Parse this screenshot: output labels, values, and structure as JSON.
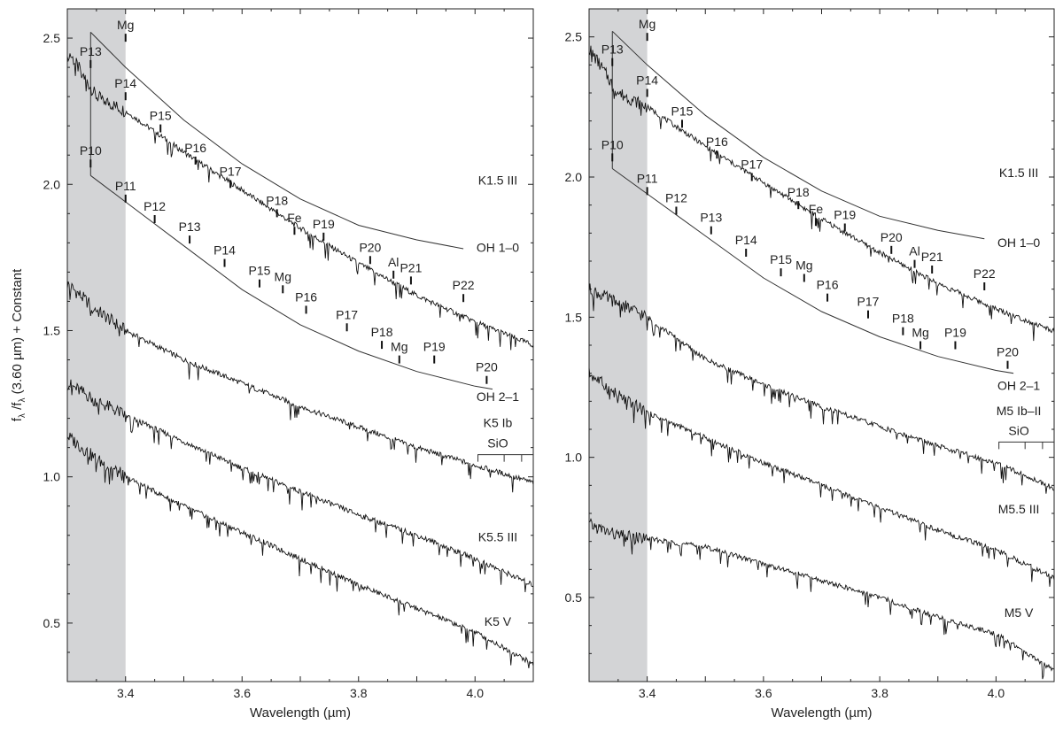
{
  "chart_data": [
    {
      "type": "line",
      "panel": "left",
      "xlabel": "Wavelength (µm)",
      "ylabel_parts": [
        "f",
        "λ",
        " /f",
        "λ",
        " (3.60 µm) + Constant"
      ],
      "xlim": [
        3.3,
        4.1
      ],
      "ylim": [
        0.3,
        2.6
      ],
      "xticks": [
        3.4,
        3.6,
        3.8,
        4.0
      ],
      "xtick_labels": [
        "3.4",
        "3.6",
        "3.8",
        "4.0"
      ],
      "yticks": [
        0.5,
        1.0,
        1.5,
        2.0,
        2.5
      ],
      "ytick_labels": [
        "0.5",
        "1.0",
        "1.5",
        "2.0",
        "2.5"
      ],
      "shaded_region": [
        3.3,
        3.4
      ],
      "series": [
        {
          "name": "K1.5 III",
          "x": [
            3.3,
            3.35,
            3.4,
            3.5,
            3.6,
            3.7,
            3.8,
            3.9,
            4.0,
            4.1
          ],
          "y": [
            2.46,
            2.3,
            2.25,
            2.11,
            1.98,
            1.85,
            1.73,
            1.62,
            1.53,
            1.45
          ]
        },
        {
          "name": "K5 Ib",
          "x": [
            3.3,
            3.35,
            3.4,
            3.5,
            3.6,
            3.7,
            3.8,
            3.9,
            4.0,
            4.1
          ],
          "y": [
            1.66,
            1.57,
            1.5,
            1.4,
            1.32,
            1.24,
            1.17,
            1.1,
            1.04,
            0.98
          ]
        },
        {
          "name": "K5.5 III",
          "x": [
            3.3,
            3.35,
            3.4,
            3.5,
            3.6,
            3.7,
            3.8,
            3.9,
            4.0,
            4.1
          ],
          "y": [
            1.32,
            1.26,
            1.21,
            1.12,
            1.03,
            0.95,
            0.87,
            0.8,
            0.72,
            0.63
          ]
        },
        {
          "name": "K5  V",
          "x": [
            3.3,
            3.35,
            3.4,
            3.5,
            3.6,
            3.7,
            3.8,
            3.9,
            4.0,
            4.1
          ],
          "y": [
            1.14,
            1.06,
            1.0,
            0.9,
            0.81,
            0.72,
            0.63,
            0.55,
            0.47,
            0.36
          ]
        }
      ],
      "band_labels": [
        {
          "text": "K1.5 III",
          "x": 4.03,
          "y": 2.0
        },
        {
          "text": "OH 1–0",
          "x": 4.03,
          "y": 1.77
        },
        {
          "text": "OH 2–1",
          "x": 4.03,
          "y": 1.26
        },
        {
          "text": "K5 Ib",
          "x": 4.03,
          "y": 1.17
        },
        {
          "text": "SiO",
          "x": 4.03,
          "y": 1.1
        },
        {
          "text": "K5.5 III",
          "x": 4.03,
          "y": 0.78
        },
        {
          "text": "K5  V",
          "x": 4.03,
          "y": 0.49
        }
      ],
      "line_ids": [
        {
          "text": "Mg",
          "x": 3.4,
          "y": 2.53
        },
        {
          "text": "P13",
          "x": 3.34,
          "y": 2.44
        },
        {
          "text": "P14",
          "x": 3.4,
          "y": 2.33
        },
        {
          "text": "P15",
          "x": 3.46,
          "y": 2.22
        },
        {
          "text": "P10",
          "x": 3.34,
          "y": 2.1
        },
        {
          "text": "P16",
          "x": 3.52,
          "y": 2.11
        },
        {
          "text": "P17",
          "x": 3.58,
          "y": 2.03
        },
        {
          "text": "P11",
          "x": 3.4,
          "y": 1.98
        },
        {
          "text": "P12",
          "x": 3.45,
          "y": 1.91
        },
        {
          "text": "P18",
          "x": 3.66,
          "y": 1.93
        },
        {
          "text": "Fe",
          "x": 3.69,
          "y": 1.87
        },
        {
          "text": "P13",
          "x": 3.51,
          "y": 1.84
        },
        {
          "text": "P19",
          "x": 3.74,
          "y": 1.85
        },
        {
          "text": "P14",
          "x": 3.57,
          "y": 1.76
        },
        {
          "text": "P20",
          "x": 3.82,
          "y": 1.77
        },
        {
          "text": "Al",
          "x": 3.86,
          "y": 1.72
        },
        {
          "text": "P21",
          "x": 3.89,
          "y": 1.7
        },
        {
          "text": "P15",
          "x": 3.63,
          "y": 1.69
        },
        {
          "text": "Mg",
          "x": 3.67,
          "y": 1.67
        },
        {
          "text": "P22",
          "x": 3.98,
          "y": 1.64
        },
        {
          "text": "P16",
          "x": 3.71,
          "y": 1.6
        },
        {
          "text": "P17",
          "x": 3.78,
          "y": 1.54
        },
        {
          "text": "P18",
          "x": 3.84,
          "y": 1.48
        },
        {
          "text": "Mg",
          "x": 3.87,
          "y": 1.43
        },
        {
          "text": "P19",
          "x": 3.93,
          "y": 1.43
        },
        {
          "text": "P20",
          "x": 4.02,
          "y": 1.36
        }
      ]
    },
    {
      "type": "line",
      "panel": "right",
      "xlabel": "Wavelength (µm)",
      "xlim": [
        3.3,
        4.1
      ],
      "ylim": [
        0.2,
        2.6
      ],
      "xticks": [
        3.4,
        3.6,
        3.8,
        4.0
      ],
      "xtick_labels": [
        "3.4",
        "3.6",
        "3.8",
        "4.0"
      ],
      "yticks": [
        0.5,
        1.0,
        1.5,
        2.0,
        2.5
      ],
      "ytick_labels": [
        "0.5",
        "1.0",
        "1.5",
        "2.0",
        "2.5"
      ],
      "shaded_region": [
        3.3,
        3.4
      ],
      "series": [
        {
          "name": "K1.5 III",
          "x": [
            3.3,
            3.35,
            3.4,
            3.5,
            3.6,
            3.7,
            3.8,
            3.9,
            4.0,
            4.1
          ],
          "y": [
            2.46,
            2.3,
            2.25,
            2.11,
            1.98,
            1.85,
            1.73,
            1.62,
            1.53,
            1.45
          ]
        },
        {
          "name": "M5 Ib–II",
          "x": [
            3.3,
            3.35,
            3.4,
            3.5,
            3.6,
            3.7,
            3.8,
            3.9,
            4.0,
            4.1
          ],
          "y": [
            1.6,
            1.55,
            1.5,
            1.35,
            1.26,
            1.18,
            1.11,
            1.04,
            0.98,
            0.89
          ]
        },
        {
          "name": "M5.5 III",
          "x": [
            3.3,
            3.35,
            3.4,
            3.5,
            3.6,
            3.7,
            3.8,
            3.9,
            4.0,
            4.1
          ],
          "y": [
            1.3,
            1.22,
            1.16,
            1.07,
            0.98,
            0.9,
            0.82,
            0.74,
            0.67,
            0.57
          ]
        },
        {
          "name": "M5  V",
          "x": [
            3.3,
            3.35,
            3.4,
            3.5,
            3.6,
            3.7,
            3.8,
            3.9,
            4.0,
            4.1
          ],
          "y": [
            0.76,
            0.72,
            0.71,
            0.68,
            0.62,
            0.56,
            0.5,
            0.43,
            0.37,
            0.24
          ]
        }
      ],
      "band_labels": [
        {
          "text": "K1.5 III",
          "x": 4.03,
          "y": 2.0
        },
        {
          "text": "OH 1–0",
          "x": 4.03,
          "y": 1.75
        },
        {
          "text": "OH 2–1",
          "x": 4.03,
          "y": 1.24
        },
        {
          "text": "M5 Ib–II",
          "x": 4.03,
          "y": 1.15
        },
        {
          "text": "SiO",
          "x": 4.03,
          "y": 1.08
        },
        {
          "text": "M5.5 III",
          "x": 4.03,
          "y": 0.8
        },
        {
          "text": "M5  V",
          "x": 4.03,
          "y": 0.43
        }
      ],
      "line_ids": [
        {
          "text": "Mg",
          "x": 3.4,
          "y": 2.53
        },
        {
          "text": "P13",
          "x": 3.34,
          "y": 2.44
        },
        {
          "text": "P14",
          "x": 3.4,
          "y": 2.33
        },
        {
          "text": "P15",
          "x": 3.46,
          "y": 2.22
        },
        {
          "text": "P10",
          "x": 3.34,
          "y": 2.1
        },
        {
          "text": "P16",
          "x": 3.52,
          "y": 2.11
        },
        {
          "text": "P17",
          "x": 3.58,
          "y": 2.03
        },
        {
          "text": "P11",
          "x": 3.4,
          "y": 1.98
        },
        {
          "text": "P12",
          "x": 3.45,
          "y": 1.91
        },
        {
          "text": "P18",
          "x": 3.66,
          "y": 1.93
        },
        {
          "text": "Fe",
          "x": 3.69,
          "y": 1.87
        },
        {
          "text": "P13",
          "x": 3.51,
          "y": 1.84
        },
        {
          "text": "P19",
          "x": 3.74,
          "y": 1.85
        },
        {
          "text": "P14",
          "x": 3.57,
          "y": 1.76
        },
        {
          "text": "P20",
          "x": 3.82,
          "y": 1.77
        },
        {
          "text": "Al",
          "x": 3.86,
          "y": 1.72
        },
        {
          "text": "P21",
          "x": 3.89,
          "y": 1.7
        },
        {
          "text": "P15",
          "x": 3.63,
          "y": 1.69
        },
        {
          "text": "Mg",
          "x": 3.67,
          "y": 1.67
        },
        {
          "text": "P22",
          "x": 3.98,
          "y": 1.64
        },
        {
          "text": "P16",
          "x": 3.71,
          "y": 1.6
        },
        {
          "text": "P17",
          "x": 3.78,
          "y": 1.54
        },
        {
          "text": "P18",
          "x": 3.84,
          "y": 1.48
        },
        {
          "text": "Mg",
          "x": 3.87,
          "y": 1.43
        },
        {
          "text": "P19",
          "x": 3.93,
          "y": 1.43
        },
        {
          "text": "P20",
          "x": 4.02,
          "y": 1.36
        }
      ]
    }
  ]
}
